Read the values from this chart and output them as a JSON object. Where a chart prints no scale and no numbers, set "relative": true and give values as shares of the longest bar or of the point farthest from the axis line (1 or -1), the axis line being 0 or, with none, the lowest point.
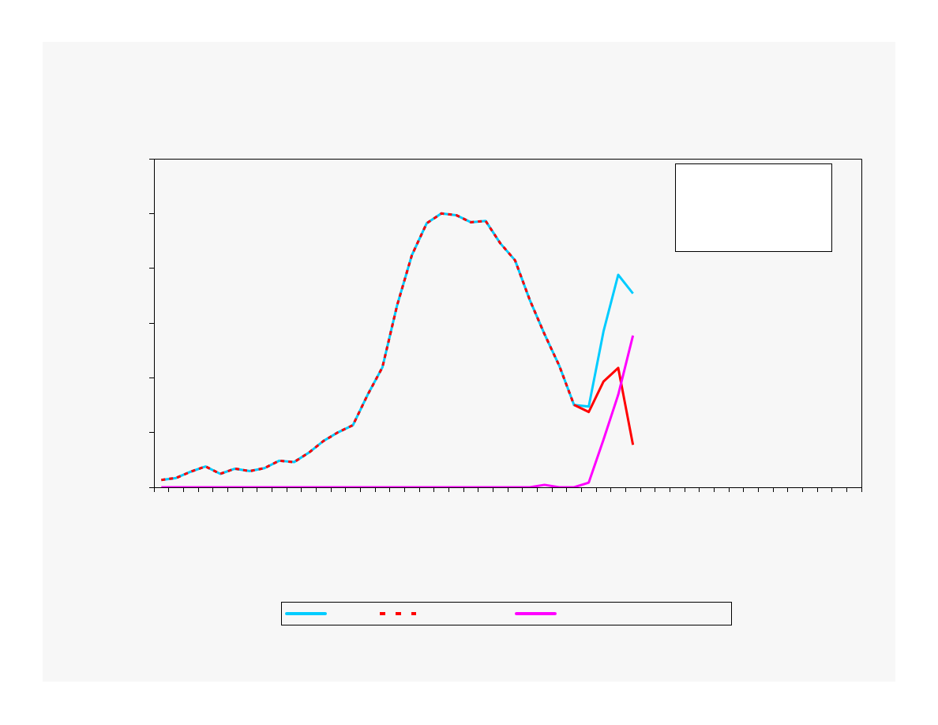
{
  "chart_data": {
    "type": "line",
    "relative": true,
    "grid": false,
    "marker": "none",
    "line_style": "solid",
    "categories": [
      null,
      null,
      null,
      null,
      null,
      null,
      null,
      null,
      null,
      null,
      null,
      null,
      null,
      null,
      null,
      null,
      null,
      null,
      null,
      null,
      null,
      null,
      null,
      null,
      null,
      null,
      null,
      null,
      null,
      null,
      null,
      null,
      null,
      null,
      null,
      null,
      null,
      null,
      null,
      null,
      null,
      null,
      null,
      null,
      null,
      null,
      null,
      null
    ],
    "series": [
      {
        "color": "#00ccff",
        "values": [
          0.027,
          0.034,
          0.057,
          0.076,
          0.049,
          0.068,
          0.059,
          0.07,
          0.097,
          0.092,
          0.126,
          0.169,
          0.201,
          0.227,
          0.338,
          0.438,
          0.665,
          0.848,
          0.964,
          1,
          0.994,
          0.968,
          0.973,
          0.891,
          0.829,
          0.684,
          0.559,
          0.444,
          0.301,
          0.295,
          0.569,
          0.776,
          0.708,
          null,
          null,
          null,
          null,
          null,
          null,
          null,
          null,
          null,
          null,
          null,
          null,
          null,
          null,
          null
        ]
      },
      {
        "color": "#ff0000",
        "line_style": "dashed",
        "values": [
          0.027,
          0.034,
          0.057,
          0.076,
          0.049,
          0.068,
          0.059,
          0.07,
          0.097,
          0.092,
          0.126,
          0.169,
          0.201,
          0.227,
          0.338,
          0.438,
          0.665,
          0.848,
          0.964,
          1,
          0.994,
          0.968,
          0.973,
          0.891,
          0.829,
          0.684,
          0.559,
          0.444,
          0.301,
          null,
          null,
          null,
          null,
          null,
          null,
          null,
          null,
          null,
          null,
          null,
          null,
          null,
          null,
          null,
          null,
          null,
          null,
          null
        ]
      },
      {
        "color": "#ff0000",
        "values": [
          null,
          null,
          null,
          null,
          null,
          null,
          null,
          null,
          null,
          null,
          null,
          null,
          null,
          null,
          null,
          null,
          null,
          null,
          null,
          null,
          null,
          null,
          null,
          null,
          null,
          null,
          null,
          null,
          0.301,
          0.275,
          0.386,
          0.436,
          0.155,
          null,
          null,
          null,
          null,
          null,
          null,
          null,
          null,
          null,
          null,
          null,
          null,
          null,
          null,
          null
        ]
      },
      {
        "color": "#ff00ff",
        "values": [
          0,
          0,
          0,
          0,
          0,
          0,
          0,
          0,
          0,
          0,
          0,
          0,
          0,
          0,
          0,
          0,
          0,
          0,
          0,
          0,
          0,
          0,
          0,
          0,
          0,
          0,
          0.009,
          0,
          0,
          0.017,
          0.174,
          0.338,
          0.554,
          null,
          null,
          null,
          null,
          null,
          null,
          null,
          null,
          null,
          null,
          null,
          null,
          null,
          null,
          null
        ]
      }
    ]
  }
}
